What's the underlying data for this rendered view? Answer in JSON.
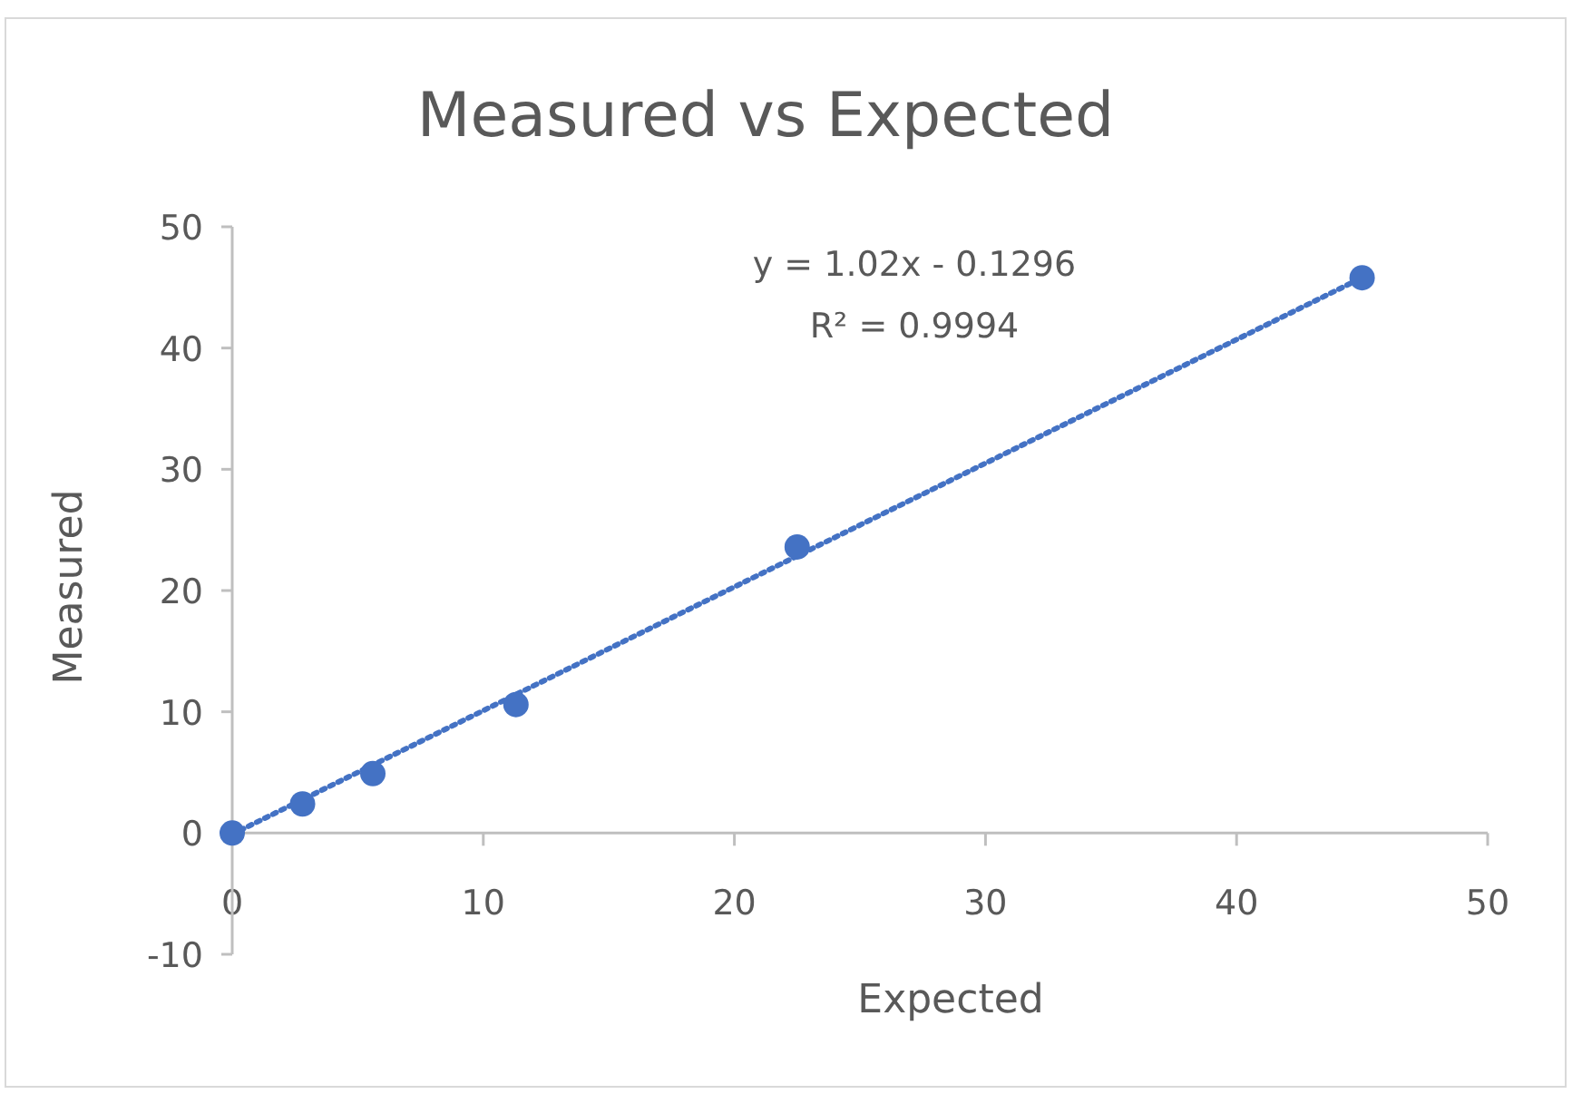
{
  "chart_data": {
    "type": "scatter",
    "title": "Measured vs Expected",
    "xlabel": "Expected",
    "ylabel": "Measured",
    "xlim": [
      0,
      50
    ],
    "xticks": [
      0,
      10,
      20,
      30,
      40,
      50
    ],
    "ylim": [
      -10,
      50
    ],
    "yticks": [
      -10,
      0,
      10,
      20,
      30,
      40,
      50
    ],
    "grid": false,
    "marker": "circle",
    "series": [
      {
        "color": "#4472c4",
        "x": [
          0,
          2.8,
          5.6,
          11.3,
          22.5,
          45
        ],
        "values": [
          0,
          2.4,
          4.9,
          10.6,
          23.6,
          45.8
        ]
      },
      {
        "type": "line",
        "color": "#4472c4",
        "line_style": "dotted",
        "marker": "none",
        "x": [
          0,
          45
        ],
        "values": [
          -0.1,
          45.8
        ]
      }
    ],
    "annotations": [
      "y = 1.02x - 0.1296",
      "R² = 0.9994"
    ]
  }
}
